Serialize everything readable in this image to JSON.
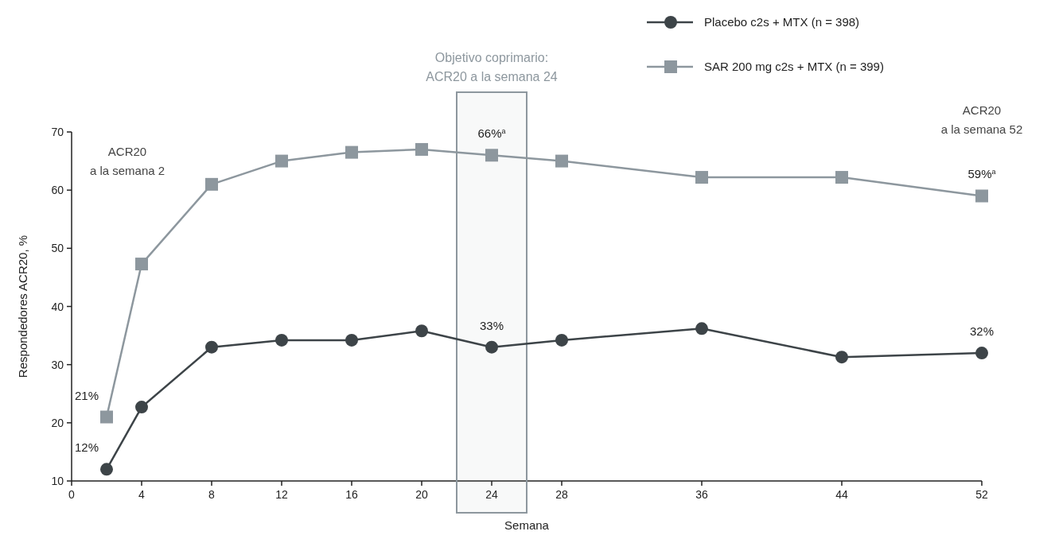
{
  "chart_data": {
    "type": "line",
    "xlabel": "Semana",
    "ylabel": "Respondedores ACR20, %",
    "x": [
      2,
      4,
      8,
      12,
      16,
      20,
      24,
      28,
      36,
      44,
      52
    ],
    "series": [
      {
        "name": "Placebo c2s + MTX (n = 398)",
        "color": "#3d4448",
        "marker": "circle",
        "values": [
          12,
          22.7,
          33,
          34.2,
          34.2,
          35.8,
          33,
          34.2,
          36.2,
          31.3,
          32
        ],
        "value_labels": [
          "12%",
          null,
          null,
          null,
          null,
          null,
          "33%",
          null,
          null,
          null,
          "32%"
        ]
      },
      {
        "name": "SAR 200 mg c2s + MTX (n = 399)",
        "color": "#8d979e",
        "marker": "square",
        "values": [
          21,
          47.3,
          61,
          65,
          66.5,
          67,
          66,
          65,
          62.2,
          62.2,
          59
        ],
        "value_labels": [
          "21%",
          null,
          null,
          null,
          null,
          null,
          "66%$^{a}$",
          null,
          null,
          null,
          "59%$^{a}$"
        ]
      }
    ],
    "xlim": [
      0,
      52
    ],
    "xticks": [
      0,
      4,
      8,
      12,
      16,
      20,
      24,
      28,
      36,
      44,
      52
    ],
    "ylim": [
      10,
      70
    ],
    "yticks": [
      10,
      20,
      30,
      40,
      50,
      60,
      70
    ],
    "grid": false,
    "legend": "top right",
    "line_style": "solid",
    "bands": [
      {
        "axis": "x",
        "from": 22,
        "to": 26,
        "label": "Objetivo coprimario: ACR20 a la semana 24",
        "color": "#8d979e"
      }
    ],
    "annotations": [
      "ACR20 a la semana 2",
      "ACR20 a la semana 52"
    ]
  }
}
